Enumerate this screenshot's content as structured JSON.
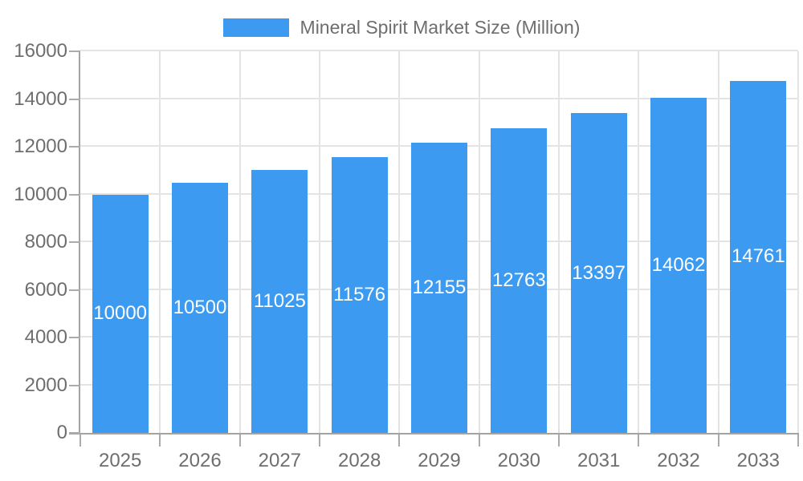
{
  "chart_data": {
    "type": "bar",
    "title": "Mineral Spirit Market Size (Million)",
    "legend_position": "top",
    "categories": [
      "2025",
      "2026",
      "2027",
      "2028",
      "2029",
      "2030",
      "2031",
      "2032",
      "2033"
    ],
    "values": [
      10000,
      10500,
      11025,
      11576,
      12155,
      12763,
      13397,
      14062,
      14761
    ],
    "series": [
      {
        "name": "Mineral Spirit Market Size (Million)",
        "values": [
          10000,
          10500,
          11025,
          11576,
          12155,
          12763,
          13397,
          14062,
          14761
        ]
      }
    ],
    "xlabel": "",
    "ylabel": "",
    "ylim": [
      0,
      16000
    ],
    "yticks": [
      0,
      2000,
      4000,
      6000,
      8000,
      10000,
      12000,
      14000,
      16000
    ],
    "grid": true,
    "value_labels": "inside-center-white",
    "colors": {
      "bar": "#3C9AF0",
      "bar_value_label": "#FFFFFF",
      "grid": "#E4E4E4",
      "axis": "#A3A3A3",
      "tick": "#ABABAB",
      "text": "#6E6E6E",
      "background": "#FFFFFF"
    }
  }
}
